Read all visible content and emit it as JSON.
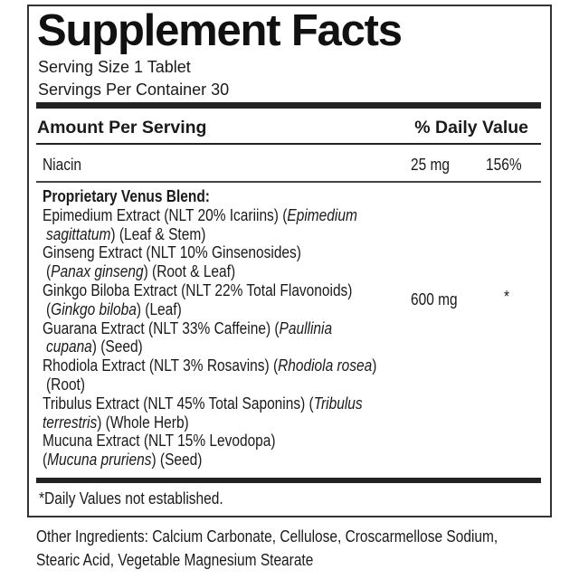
{
  "title": "Supplement Facts",
  "serving_size": "Serving Size 1 Tablet",
  "servings_per_container": "Servings Per Container 30",
  "header": {
    "amount": "Amount Per Serving",
    "dv": "% Daily Value"
  },
  "niacin": {
    "name": "Niacin",
    "amount": "25 mg",
    "dv": "156%"
  },
  "blend": {
    "name": "Proprietary Venus Blend:",
    "amount": "600 mg",
    "dv": "*",
    "lines": [
      {
        "indent": false,
        "parts": [
          {
            "t": "Epimedium Extract (NLT 20% Icariins) (",
            "i": false
          },
          {
            "t": "Epimedium",
            "i": true
          }
        ]
      },
      {
        "indent": true,
        "parts": [
          {
            "t": "sagittatum",
            "i": true
          },
          {
            "t": ") (Leaf & Stem)",
            "i": false
          }
        ]
      },
      {
        "indent": false,
        "parts": [
          {
            "t": "Ginseng Extract (NLT 10% Ginsenosides)",
            "i": false
          }
        ]
      },
      {
        "indent": true,
        "parts": [
          {
            "t": "(",
            "i": false
          },
          {
            "t": "Panax ginseng",
            "i": true
          },
          {
            "t": ") (Root & Leaf)",
            "i": false
          }
        ]
      },
      {
        "indent": false,
        "parts": [
          {
            "t": "Ginkgo Biloba Extract (NLT 22% Total Flavonoids)",
            "i": false
          }
        ]
      },
      {
        "indent": true,
        "parts": [
          {
            "t": "(",
            "i": false
          },
          {
            "t": "Ginkgo biloba",
            "i": true
          },
          {
            "t": ") (Leaf)",
            "i": false
          }
        ]
      },
      {
        "indent": false,
        "parts": [
          {
            "t": "Guarana Extract (NLT 33% Caffeine) (",
            "i": false
          },
          {
            "t": "Paullinia",
            "i": true
          }
        ]
      },
      {
        "indent": true,
        "parts": [
          {
            "t": "cupana",
            "i": true
          },
          {
            "t": ") (Seed)",
            "i": false
          }
        ]
      },
      {
        "indent": false,
        "parts": [
          {
            "t": "Rhodiola Extract (NLT 3% Rosavins) (",
            "i": false
          },
          {
            "t": "Rhodiola rosea",
            "i": true
          },
          {
            "t": ")",
            "i": false
          }
        ]
      },
      {
        "indent": true,
        "parts": [
          {
            "t": "(Root)",
            "i": false
          }
        ]
      },
      {
        "indent": false,
        "parts": [
          {
            "t": "Tribulus Extract (NLT 45% Total Saponins) (",
            "i": false
          },
          {
            "t": "Tribulus",
            "i": true
          }
        ]
      },
      {
        "indent": false,
        "parts": [
          {
            "t": "terrestris",
            "i": true
          },
          {
            "t": ") (Whole Herb)",
            "i": false
          }
        ]
      },
      {
        "indent": false,
        "parts": [
          {
            "t": "Mucuna Extract (NLT 15% Levodopa)",
            "i": false
          }
        ]
      },
      {
        "indent": false,
        "parts": [
          {
            "t": "(",
            "i": false
          },
          {
            "t": "Mucuna pruriens",
            "i": true
          },
          {
            "t": ") (Seed)",
            "i": false
          }
        ]
      }
    ]
  },
  "footnote": "*Daily Values not established.",
  "other_ingredients": [
    "Other Ingredients: Calcium Carbonate, Cellulose, Croscarmellose Sodium,",
    "Stearic Acid, Vegetable Magnesium Stearate"
  ]
}
